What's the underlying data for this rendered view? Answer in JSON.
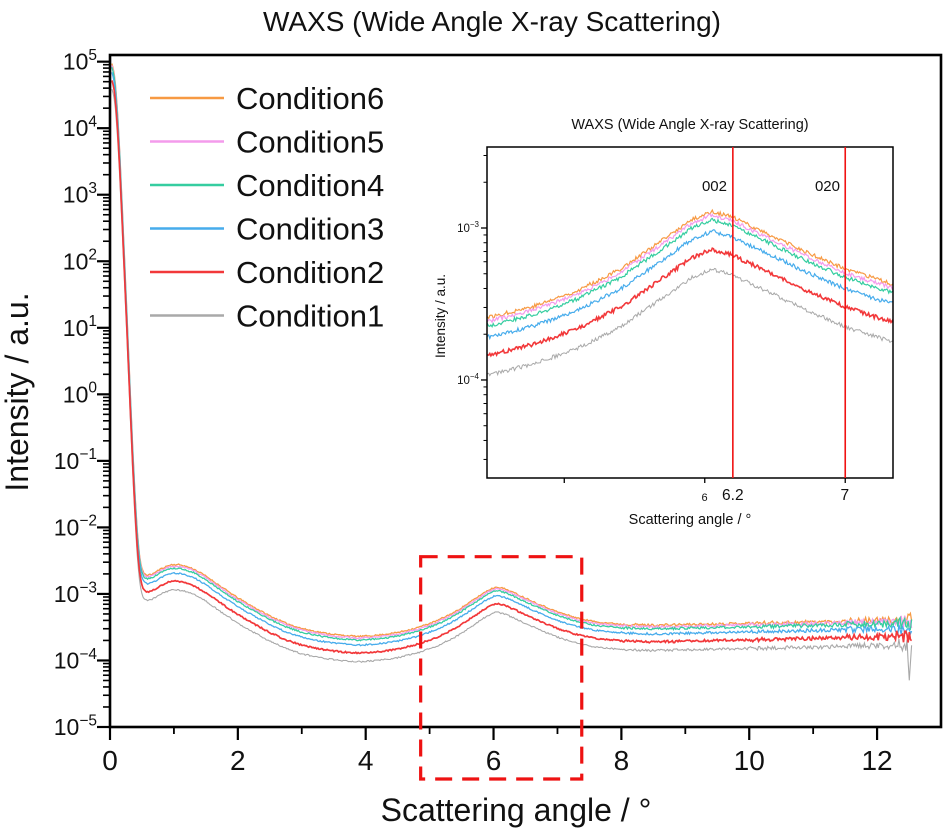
{
  "figure": {
    "title": "WAXS (Wide Angle X-ray Scattering)",
    "x_axis_label": "Scattering angle / °",
    "y_axis_label": "Intensity / a.u."
  },
  "chart_data": {
    "type": "line",
    "scale": "semilog-y",
    "title": "WAXS (Wide Angle X-ray Scattering)",
    "xlabel": "Scattering angle / °",
    "ylabel": "Intensity / a.u.",
    "x_range": [
      0,
      13
    ],
    "y_range_log10": [
      -5,
      5.1
    ],
    "x_major_ticks": [
      0,
      2,
      4,
      6,
      8,
      10,
      12
    ],
    "x_minor_ticks": [
      1,
      3,
      5,
      7,
      9,
      11
    ],
    "y_tick_exponents": [
      5,
      4,
      3,
      2,
      1,
      0,
      -1,
      -2,
      -3,
      -4,
      -5
    ],
    "grid": false,
    "legend_position": "upper-left-inside",
    "series": [
      {
        "name": "Condition6",
        "color": "#F79A43",
        "log10_offset": 0.0,
        "line_width": 1.3
      },
      {
        "name": "Condition5",
        "color": "#F49BEC",
        "log10_offset": -0.025,
        "line_width": 1.3
      },
      {
        "name": "Condition4",
        "color": "#35CDA0",
        "log10_offset": -0.055,
        "line_width": 1.3
      },
      {
        "name": "Condition3",
        "color": "#47ACEC",
        "log10_offset": -0.13,
        "line_width": 1.3
      },
      {
        "name": "Condition2",
        "color": "#F2383A",
        "log10_offset": -0.25,
        "line_width": 1.7
      },
      {
        "name": "Condition1",
        "color": "#A9A9A9",
        "log10_offset": -0.38,
        "line_width": 1.1
      }
    ],
    "base_curve": {
      "note": "log10(intensity) of top curve (Condition6); other series = base + log10_offset",
      "x": [
        0.03,
        0.07,
        0.12,
        0.17,
        0.22,
        0.28,
        0.34,
        0.4,
        0.45,
        0.5,
        0.56,
        0.65,
        0.8,
        0.95,
        1.1,
        1.3,
        1.5,
        1.75,
        2.0,
        2.25,
        2.5,
        2.75,
        3.0,
        3.3,
        3.6,
        3.9,
        4.2,
        4.5,
        4.8,
        5.1,
        5.4,
        5.7,
        5.9,
        6.05,
        6.2,
        6.45,
        6.7,
        7.0,
        7.3,
        7.6,
        8.0,
        8.5,
        9.0,
        9.5,
        10.0,
        10.5,
        11.0,
        11.5,
        12.0,
        12.55
      ],
      "log10_intensity": [
        5.07,
        4.85,
        4.3,
        3.3,
        2.2,
        0.9,
        -0.5,
        -1.7,
        -2.4,
        -2.66,
        -2.72,
        -2.71,
        -2.62,
        -2.56,
        -2.56,
        -2.62,
        -2.73,
        -2.9,
        -3.06,
        -3.2,
        -3.33,
        -3.44,
        -3.52,
        -3.58,
        -3.62,
        -3.64,
        -3.62,
        -3.58,
        -3.51,
        -3.41,
        -3.27,
        -3.08,
        -2.95,
        -2.89,
        -2.93,
        -3.04,
        -3.15,
        -3.27,
        -3.36,
        -3.42,
        -3.455,
        -3.47,
        -3.46,
        -3.45,
        -3.44,
        -3.43,
        -3.42,
        -3.41,
        -3.4,
        -3.39
      ],
      "x_start": 0.03,
      "x_end": 12.55,
      "peak_x": 6.0,
      "peak_intensity_top_curve": 0.00125
    },
    "noise_log10_amplitude": {
      "x_breaks": [
        0.5,
        8,
        10,
        11.5,
        12.3
      ],
      "amps": [
        0.004,
        0.011,
        0.018,
        0.028,
        0.05,
        0.1
      ]
    },
    "highlight_box": {
      "x_min": 4.86,
      "x_max": 7.38,
      "y_top_log10": -2.44,
      "color": "#EE1212",
      "style": "dashed"
    },
    "inset": {
      "title": "WAXS (Wide Angle X-ray Scattering)",
      "xlabel": "Scattering angle / °",
      "ylabel": "Intensity / a.u.",
      "x_range": [
        4.45,
        7.34
      ],
      "y_range_log10": [
        -4.645,
        -2.467
      ],
      "x_major_ticks": [
        5,
        6,
        7
      ],
      "x_tick_labels": [
        "",
        "6",
        ""
      ],
      "y_tick_exponents": [
        -3,
        -4
      ],
      "ref_lines": [
        {
          "x": 6.2,
          "label": "002",
          "tick_label": "6.2"
        },
        {
          "x": 7.0,
          "label": "020",
          "tick_label": "7"
        }
      ],
      "ref_line_color": "#F01212"
    }
  }
}
